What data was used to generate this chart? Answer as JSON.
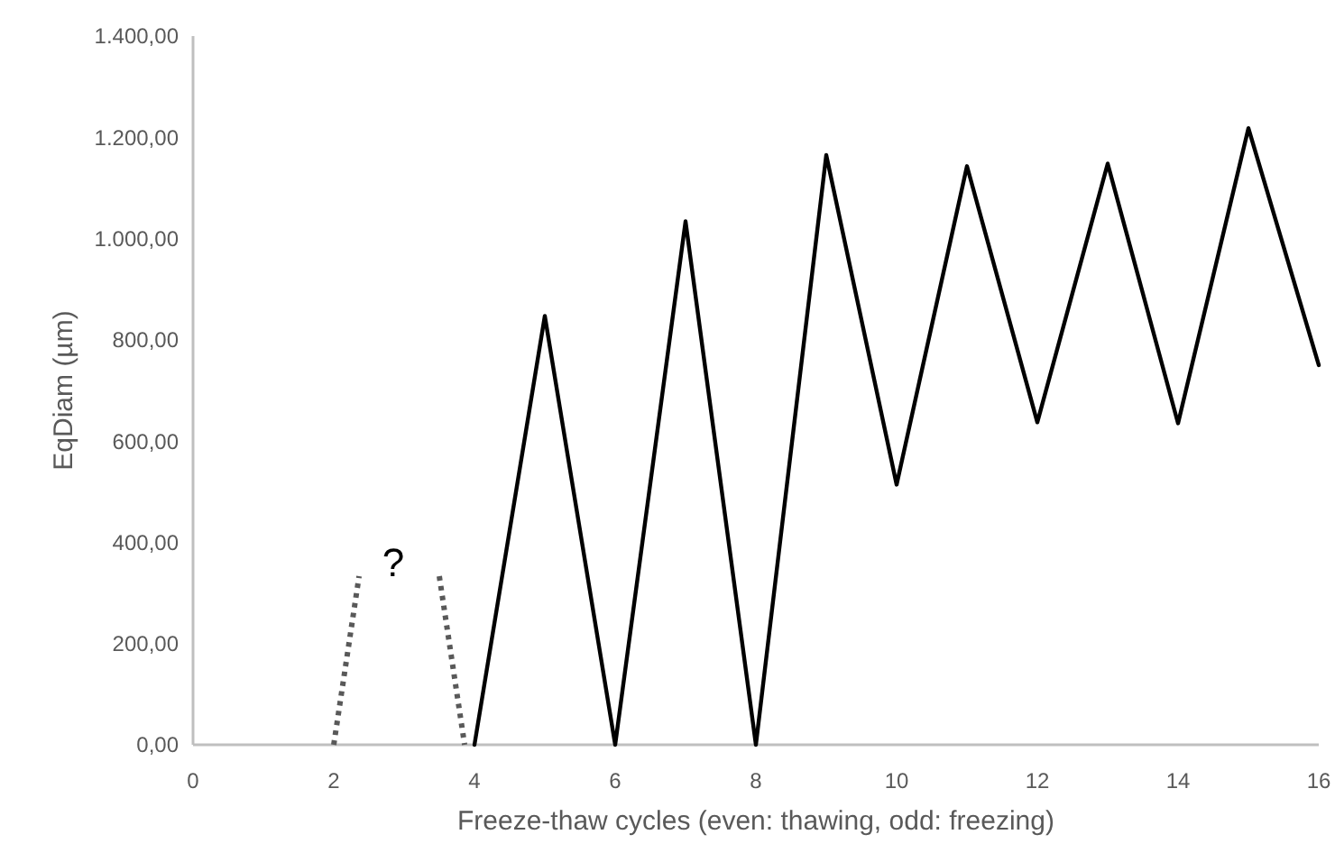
{
  "chart_data": {
    "type": "line",
    "xlabel": "Freeze-thaw cycles (even: thawing, odd: freezing)",
    "ylabel": "EqDiam (µm)",
    "xlim": [
      0,
      16
    ],
    "xticks": [
      0,
      2,
      4,
      6,
      8,
      10,
      12,
      14,
      16
    ],
    "ylim": [
      0,
      1400
    ],
    "yticks": [
      {
        "value": 0,
        "label": "0,00"
      },
      {
        "value": 200,
        "label": "200,00"
      },
      {
        "value": 400,
        "label": "400,00"
      },
      {
        "value": 600,
        "label": "600,00"
      },
      {
        "value": 800,
        "label": "800,00"
      },
      {
        "value": 1000,
        "label": "1.000,00"
      },
      {
        "value": 1200,
        "label": "1.200,00"
      },
      {
        "value": 1400,
        "label": "1.400,00"
      }
    ],
    "grid": false,
    "series": [
      {
        "color": "#000000",
        "line_style": "solid",
        "x": [
          4,
          5,
          6,
          7,
          8,
          9,
          10,
          11,
          12,
          13,
          14,
          15,
          16
        ],
        "values": [
          0,
          847,
          0,
          1034,
          0,
          1165,
          514,
          1143,
          637,
          1148,
          635,
          1218,
          750
        ]
      },
      {
        "color": "#595959",
        "line_style": "dotted",
        "x": [
          2,
          2.36
        ],
        "values": [
          0,
          333
        ]
      },
      {
        "color": "#595959",
        "line_style": "dotted",
        "x": [
          3.5,
          3.86
        ],
        "values": [
          333,
          0
        ]
      }
    ],
    "annotations": [
      "?"
    ]
  }
}
